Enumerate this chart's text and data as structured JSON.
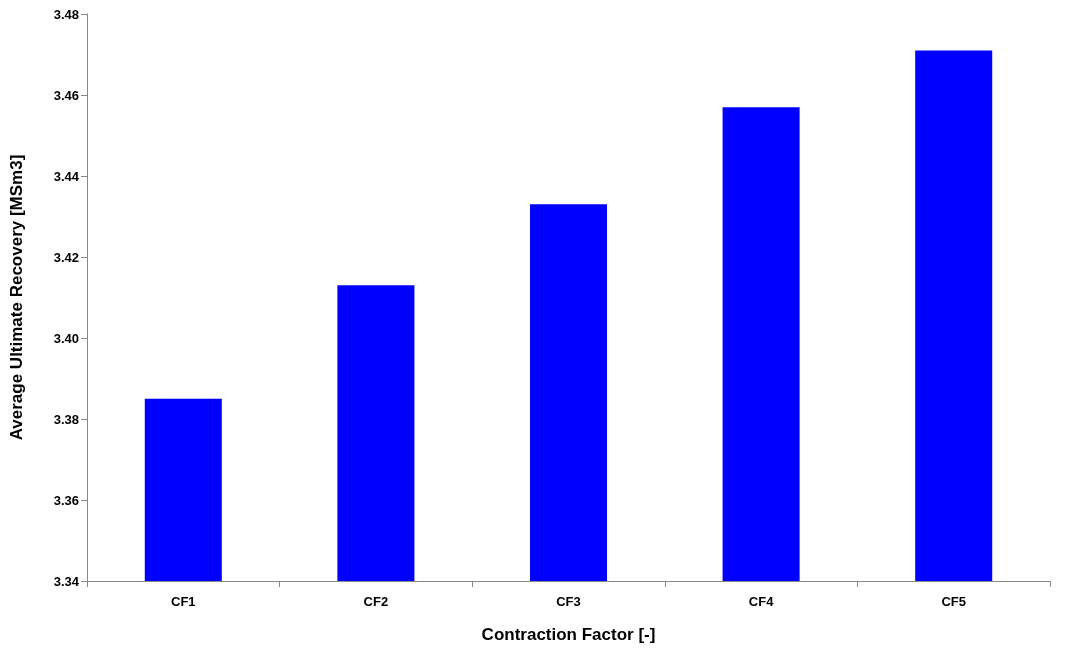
{
  "chart_data": {
    "type": "bar",
    "xlabel": "Contraction Factor [-]",
    "ylabel": "Average Ultimate Recovery [MSm3]",
    "categories": [
      "CF1",
      "CF2",
      "CF3",
      "CF4",
      "CF5"
    ],
    "values": [
      3.385,
      3.413,
      3.433,
      3.457,
      3.471
    ],
    "color": "#0000ff",
    "ylim": [
      3.34,
      3.48
    ],
    "yticks": [
      3.34,
      3.36,
      3.38,
      {
        "value": 3.4,
        "label": "3.40"
      },
      3.42,
      3.44,
      3.46,
      3.48
    ],
    "grid": false
  }
}
